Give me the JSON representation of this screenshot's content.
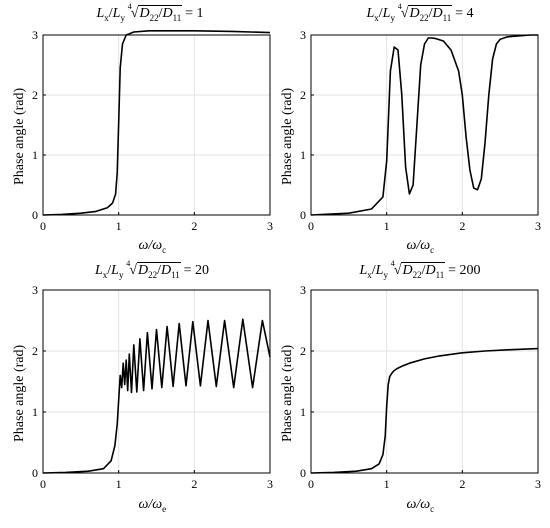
{
  "chart_data": [
    {
      "type": "line",
      "title_ratio": "= 1",
      "xlabel": "ω/ω",
      "xlabel_sub": "c",
      "ylabel": "Phase angle (rad)",
      "xlim": [
        0,
        3
      ],
      "ylim": [
        0,
        3
      ],
      "xticks": [
        0,
        1,
        2,
        3
      ],
      "yticks": [
        0,
        1,
        2,
        3
      ],
      "grid": true,
      "x": [
        0,
        0.25,
        0.5,
        0.7,
        0.85,
        0.92,
        0.96,
        0.98,
        1.0,
        1.02,
        1.05,
        1.1,
        1.2,
        1.4,
        1.7,
        2.0,
        2.5,
        3.0
      ],
      "y": [
        0.0,
        0.01,
        0.03,
        0.06,
        0.12,
        0.2,
        0.35,
        0.7,
        1.55,
        2.45,
        2.85,
        3.0,
        3.05,
        3.07,
        3.07,
        3.07,
        3.06,
        3.04
      ]
    },
    {
      "type": "line",
      "title_ratio": "= 4",
      "xlabel": "ω/ω",
      "xlabel_sub": "c",
      "ylabel": "Phase angle (rad)",
      "xlim": [
        0,
        3
      ],
      "ylim": [
        0,
        3
      ],
      "xticks": [
        0,
        1,
        2,
        3
      ],
      "yticks": [
        0,
        1,
        2,
        3
      ],
      "grid": true,
      "x": [
        0,
        0.5,
        0.8,
        0.95,
        1.0,
        1.05,
        1.1,
        1.15,
        1.2,
        1.25,
        1.3,
        1.35,
        1.4,
        1.45,
        1.5,
        1.55,
        1.6,
        1.65,
        1.75,
        1.85,
        1.95,
        2.0,
        2.05,
        2.1,
        2.15,
        2.2,
        2.25,
        2.3,
        2.35,
        2.4,
        2.45,
        2.5,
        2.6,
        2.7,
        2.8,
        2.9,
        3.0
      ],
      "y": [
        0.0,
        0.03,
        0.1,
        0.3,
        0.9,
        2.4,
        2.8,
        2.75,
        2.0,
        0.8,
        0.35,
        0.5,
        1.5,
        2.5,
        2.85,
        2.95,
        2.95,
        2.94,
        2.9,
        2.75,
        2.4,
        2.0,
        1.3,
        0.75,
        0.45,
        0.42,
        0.6,
        1.2,
        2.0,
        2.6,
        2.85,
        2.93,
        2.97,
        2.98,
        2.99,
        3.0,
        3.0
      ]
    },
    {
      "type": "line",
      "title_ratio": "= 20",
      "xlabel": "ω/ω",
      "xlabel_sub": "e",
      "ylabel": "Phase angle (rad)",
      "xlim": [
        0,
        3
      ],
      "ylim": [
        0,
        3
      ],
      "xticks": [
        0,
        1,
        2,
        3
      ],
      "yticks": [
        0,
        1,
        2,
        3
      ],
      "grid": true,
      "x": [
        0,
        0.3,
        0.6,
        0.8,
        0.9,
        0.95,
        0.98,
        1.0,
        1.02,
        1.04,
        1.06,
        1.08,
        1.1,
        1.12,
        1.14,
        1.17,
        1.2,
        1.24,
        1.28,
        1.33,
        1.38,
        1.44,
        1.5,
        1.57,
        1.64,
        1.72,
        1.8,
        1.89,
        1.98,
        2.08,
        2.18,
        2.29,
        2.4,
        2.52,
        2.64,
        2.77,
        2.9,
        3.0
      ],
      "y": [
        0.0,
        0.01,
        0.03,
        0.07,
        0.2,
        0.45,
        0.8,
        1.2,
        1.6,
        1.4,
        1.8,
        1.45,
        1.85,
        1.35,
        1.95,
        1.32,
        2.1,
        1.33,
        2.2,
        1.35,
        2.3,
        1.38,
        2.35,
        1.4,
        2.4,
        1.42,
        2.45,
        1.43,
        2.48,
        1.43,
        2.5,
        1.42,
        2.5,
        1.4,
        2.52,
        1.4,
        2.5,
        1.9
      ]
    },
    {
      "type": "line",
      "title_ratio": "= 200",
      "xlabel": "ω/ω",
      "xlabel_sub": "c",
      "ylabel": "Phase angle (rad)",
      "xlim": [
        0,
        3
      ],
      "ylim": [
        0,
        3
      ],
      "xticks": [
        0,
        1,
        2,
        3
      ],
      "yticks": [
        0,
        1,
        2,
        3
      ],
      "grid": true,
      "x": [
        0,
        0.3,
        0.6,
        0.8,
        0.9,
        0.95,
        0.98,
        1.0,
        1.02,
        1.04,
        1.07,
        1.1,
        1.15,
        1.2,
        1.3,
        1.5,
        1.7,
        2.0,
        2.3,
        2.6,
        3.0
      ],
      "y": [
        0.0,
        0.01,
        0.03,
        0.07,
        0.15,
        0.3,
        0.6,
        1.1,
        1.45,
        1.58,
        1.64,
        1.68,
        1.72,
        1.75,
        1.8,
        1.87,
        1.92,
        1.97,
        2.0,
        2.02,
        2.04
      ]
    }
  ]
}
